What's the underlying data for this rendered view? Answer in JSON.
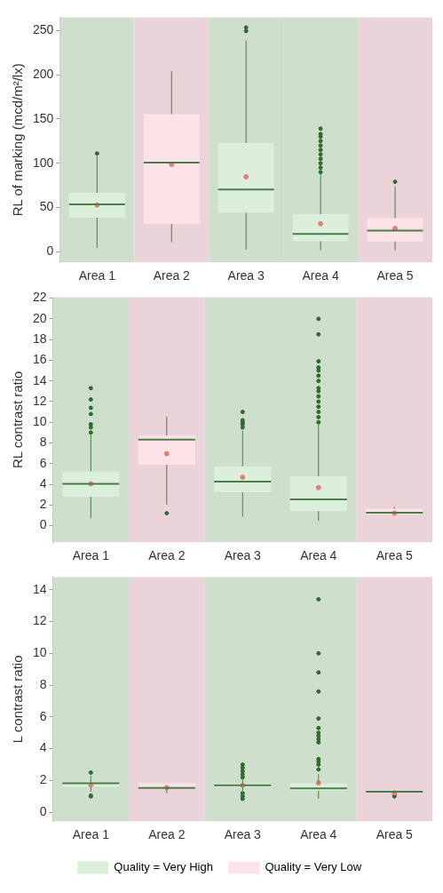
{
  "chart_data": [
    {
      "type": "box",
      "ylabel": "RL of marking (mcd/m²/lx)",
      "categories": [
        "Area 1",
        "Area 2",
        "Area 3",
        "Area 4",
        "Area 5"
      ],
      "ylim": [
        -12,
        265
      ],
      "yticks": [
        0,
        50,
        100,
        150,
        200,
        250
      ],
      "legend": false,
      "series": [
        {
          "color": "#dcefda",
          "boxes": [
            {
              "low": 4,
              "q1": 38.4,
              "median": 53.6,
              "q3": 66.6,
              "high": 108,
              "mean": 52.7,
              "outliers": [
                111
              ]
            },
            null,
            {
              "low": 2.5,
              "q1": 44,
              "median": 70.3,
              "q3": 123,
              "high": 238.5,
              "mean": 84.6,
              "outliers": [
                249.4,
                253.4
              ]
            },
            {
              "low": 1.5,
              "q1": 11.8,
              "median": 20.1,
              "q3": 42.4,
              "high": 88,
              "mean": 31.6,
              "outliers": [
                90,
                95,
                100,
                105,
                110,
                115,
                120,
                125,
                130,
                133,
                139
              ]
            },
            null
          ]
        },
        {
          "color": "#fbe3e8",
          "boxes": [
            null,
            {
              "low": 10.8,
              "q1": 31.3,
              "median": 100.7,
              "q3": 155.5,
              "high": 204,
              "mean": 98.8
            },
            null,
            null,
            {
              "low": 1.5,
              "q1": 11.5,
              "median": 23.9,
              "q3": 37.8,
              "high": 74,
              "mean": 26.3,
              "outliers": [
                79
              ]
            }
          ]
        }
      ]
    },
    {
      "type": "box",
      "ylabel": "RL contrast ratio",
      "categories": [
        "Area 1",
        "Area 2",
        "Area 3",
        "Area 4",
        "Area 5"
      ],
      "ylim": [
        -1.6,
        22.1
      ],
      "yticks": [
        0,
        2,
        4,
        6,
        8,
        10,
        12,
        14,
        16,
        18,
        20,
        22
      ],
      "legend": false,
      "series": [
        {
          "color": "#dcefda",
          "boxes": [
            {
              "low": 0.7,
              "q1": 2.8,
              "median": 4.05,
              "q3": 5.25,
              "high": 8.8,
              "mean": 4.05,
              "outliers": [
                9,
                9.5,
                9.8,
                10.8,
                11.4,
                12.2,
                13.3
              ]
            },
            null,
            {
              "low": 0.85,
              "q1": 3.23,
              "median": 4.26,
              "q3": 5.73,
              "high": 9.2,
              "mean": 4.68,
              "outliers": [
                9.5,
                9.8,
                10,
                10.2,
                11
              ]
            },
            {
              "low": 0.47,
              "q1": 1.4,
              "median": 2.55,
              "q3": 4.78,
              "high": 9.8,
              "mean": 3.68,
              "outliers": [
                10,
                10.5,
                11,
                11.5,
                12,
                12.5,
                13,
                13.3,
                14,
                14.5,
                15,
                15.3,
                15.9,
                18.5,
                20
              ]
            },
            null
          ]
        },
        {
          "color": "#fbe3e8",
          "boxes": [
            null,
            {
              "low": 2.05,
              "q1": 5.9,
              "median": 8.33,
              "q3": 8.7,
              "high": 10.57,
              "mean": 6.96,
              "outliers": [
                1.2
              ]
            },
            null,
            null,
            {
              "low": 1.08,
              "q1": 1.08,
              "median": 1.26,
              "q3": 1.63,
              "high": 1.84,
              "mean": 1.2
            }
          ]
        }
      ]
    },
    {
      "type": "box",
      "ylabel": "L contrast ratio",
      "categories": [
        "Area 1",
        "Area 2",
        "Area 3",
        "Area 4",
        "Area 5"
      ],
      "ylim": [
        -0.56,
        14.8
      ],
      "yticks": [
        0,
        2,
        4,
        6,
        8,
        10,
        12,
        14
      ],
      "legend": "bottom",
      "series": [
        {
          "name": "Quality = Very High",
          "color": "#dcefda",
          "boxes": [
            {
              "low": 1.3,
              "q1": 1.61,
              "median": 1.82,
              "q3": 1.9,
              "high": 2.3,
              "mean": 1.73,
              "outliers": [
                1,
                1.05,
                2.5
              ]
            },
            null,
            {
              "low": 1.35,
              "q1": 1.6,
              "median": 1.7,
              "q3": 1.82,
              "high": 2.1,
              "mean": 1.7,
              "outliers": [
                0.85,
                1,
                1.2,
                2.2,
                2.4,
                2.6,
                2.8,
                3
              ]
            },
            {
              "low": 0.85,
              "q1": 1.36,
              "median": 1.51,
              "q3": 1.82,
              "high": 2.4,
              "mean": 1.85,
              "outliers": [
                2.7,
                3,
                3.2,
                3.35,
                4.4,
                4.6,
                4.8,
                5,
                5.3,
                5.9,
                7.6,
                8.8,
                10,
                13.4
              ]
            },
            null
          ]
        },
        {
          "name": "Quality = Very Low",
          "color": "#fbe3e8",
          "boxes": [
            null,
            {
              "low": 1.2,
              "q1": 1.48,
              "median": 1.53,
              "q3": 1.82,
              "high": 1.82,
              "mean": 1.55
            },
            null,
            null,
            {
              "low": 1.25,
              "q1": 1.28,
              "median": 1.3,
              "q3": 1.32,
              "high": 1.35,
              "mean": 1.22,
              "outliers": [
                1,
                1.1
              ]
            }
          ]
        }
      ]
    }
  ]
}
